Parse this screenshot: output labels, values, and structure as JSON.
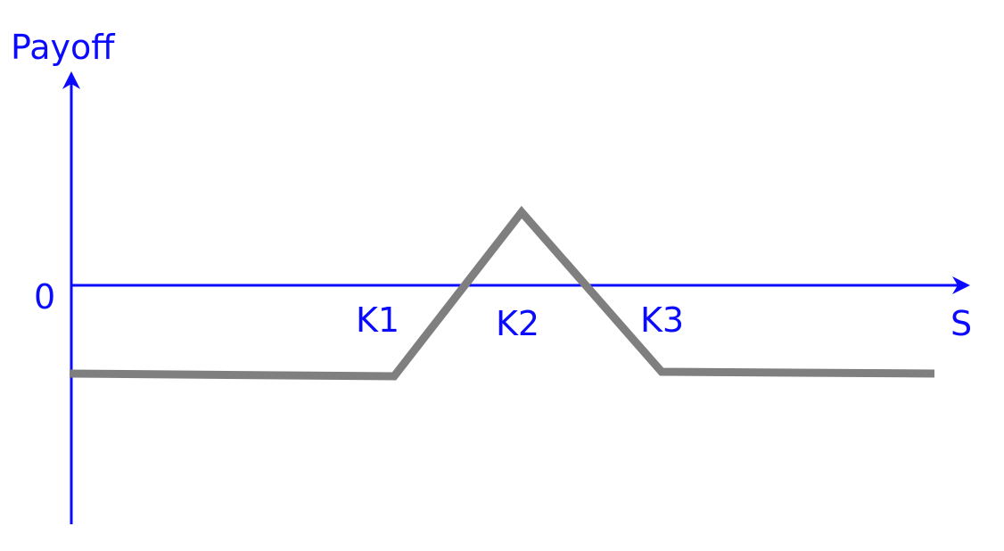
{
  "colors": {
    "axis": "#0a0aff",
    "payoff_line": "#7f7f7f",
    "background": "#ffffff"
  },
  "labels": {
    "y_axis": "Payoff",
    "x_axis": "S",
    "zero": "0",
    "k1": "K1",
    "k2": "K2",
    "k3": "K3"
  }
}
